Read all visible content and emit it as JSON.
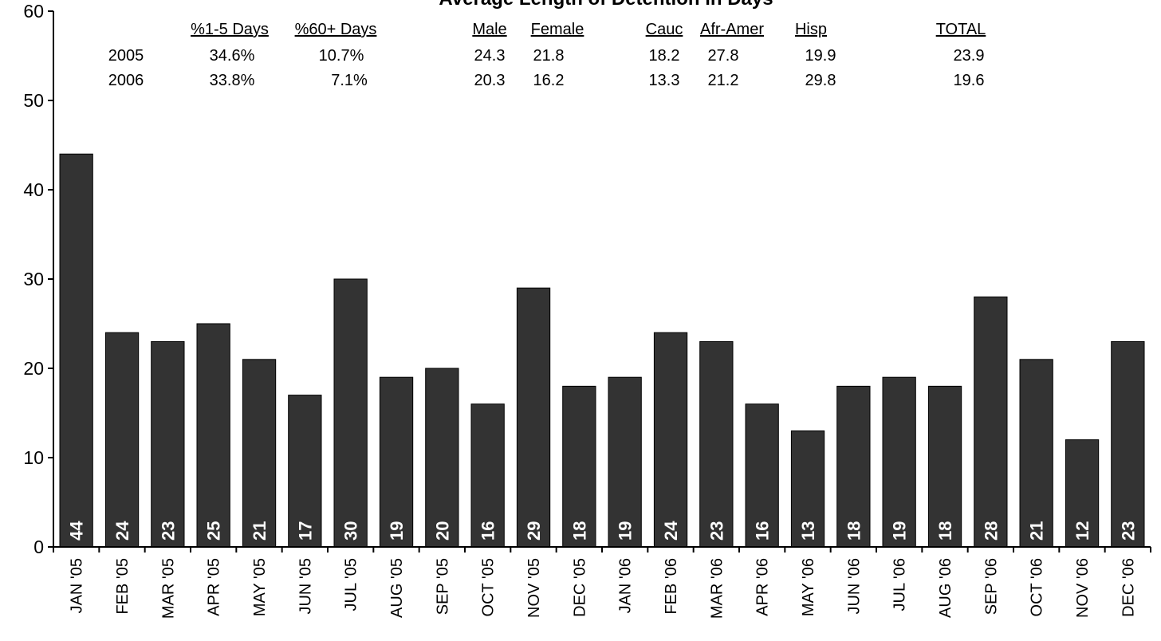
{
  "chart_data": {
    "type": "bar",
    "title": "Average Length of Detention in Days",
    "categories": [
      "JAN '05",
      "FEB '05",
      "MAR '05",
      "APR '05",
      "MAY '05",
      "JUN '05",
      "JUL '05",
      "AUG '05",
      "SEP '05",
      "OCT '05",
      "NOV '05",
      "DEC '05",
      "JAN '06",
      "FEB '06",
      "MAR '06",
      "APR '06",
      "MAY '06",
      "JUN '06",
      "JUL '06",
      "AUG '06",
      "SEP '06",
      "OCT '06",
      "NOV '06",
      "DEC '06"
    ],
    "values": [
      44,
      24,
      23,
      25,
      21,
      17,
      30,
      19,
      20,
      16,
      29,
      18,
      19,
      24,
      23,
      16,
      13,
      18,
      19,
      18,
      28,
      21,
      12,
      23
    ],
    "data_labels": [
      "44",
      "24",
      "23",
      "25",
      "21",
      "17",
      "30",
      "19",
      "20",
      "16",
      "29",
      "18",
      "19",
      "24",
      "23",
      "16",
      "13",
      "18",
      "19",
      "18",
      "28",
      "21",
      "12",
      "23"
    ],
    "ylim": [
      0,
      60
    ],
    "yticks": [
      "0",
      "10",
      "20",
      "30",
      "40",
      "50",
      "60"
    ],
    "xlabel": "",
    "ylabel": "",
    "grid": false,
    "colors": {
      "bar": "#333333",
      "bar_stroke": "#000000",
      "data_label": "#ffffff",
      "axis": "#000000"
    }
  },
  "summary_table": {
    "row_labels": [
      "2005",
      "2006"
    ],
    "columns": [
      {
        "header": "%1-5 Days",
        "values": [
          "34.6%",
          "33.8%"
        ]
      },
      {
        "header": "%60+ Days",
        "values": [
          "10.7%",
          "7.1%"
        ]
      },
      {
        "header": "Male",
        "values": [
          "24.3",
          "20.3"
        ]
      },
      {
        "header": "Female",
        "values": [
          "21.8",
          "16.2"
        ]
      },
      {
        "header": "Cauc",
        "values": [
          "18.2",
          "13.3"
        ]
      },
      {
        "header": "Afr-Amer",
        "values": [
          "27.8",
          "21.2"
        ]
      },
      {
        "header": "Hisp",
        "values": [
          "19.9",
          "29.8"
        ]
      },
      {
        "header": "TOTAL",
        "values": [
          "23.9",
          "19.6"
        ]
      }
    ]
  }
}
